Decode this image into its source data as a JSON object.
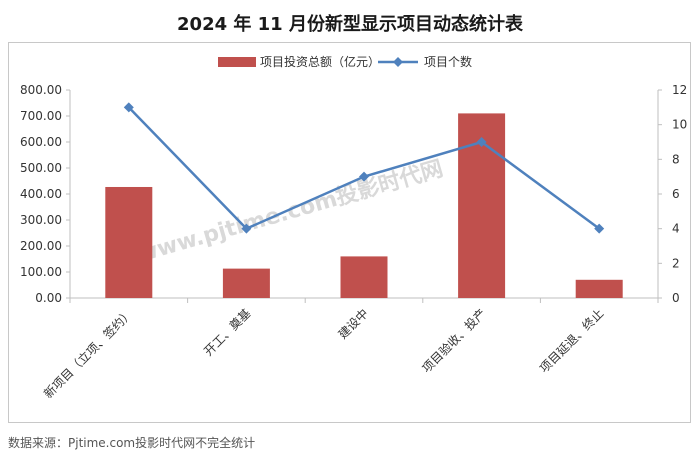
{
  "title": "2024 年 11 月份新型显示项目动态统计表",
  "source": "数据来源：Pjtime.com投影时代网不完全统计",
  "watermark": "www.pjtime.com投影时代网",
  "colors": {
    "bar": "#c0504d",
    "line": "#4f81bd",
    "axis": "#bfbfbf"
  },
  "chart_data": {
    "type": "bar",
    "categories": [
      "新项目（立项、签约）",
      "开工、奠基",
      "建设中",
      "项目验收、投产",
      "项目延退、终止"
    ],
    "series": [
      {
        "name": "项目投资总额（亿元）",
        "type": "bar",
        "axis": "left",
        "values": [
          427,
          113,
          160,
          710,
          70
        ]
      },
      {
        "name": "项目个数",
        "type": "line",
        "axis": "right",
        "values": [
          11,
          4,
          7,
          9,
          4
        ]
      }
    ],
    "y_left": {
      "min": 0,
      "max": 800,
      "ticks": [
        "0.00",
        "100.00",
        "200.00",
        "300.00",
        "400.00",
        "500.00",
        "600.00",
        "700.00",
        "800.00"
      ]
    },
    "y_right": {
      "min": 0,
      "max": 12,
      "ticks": [
        "0",
        "2",
        "4",
        "6",
        "8",
        "10",
        "12"
      ]
    },
    "legend": "top-center",
    "grid": false
  }
}
